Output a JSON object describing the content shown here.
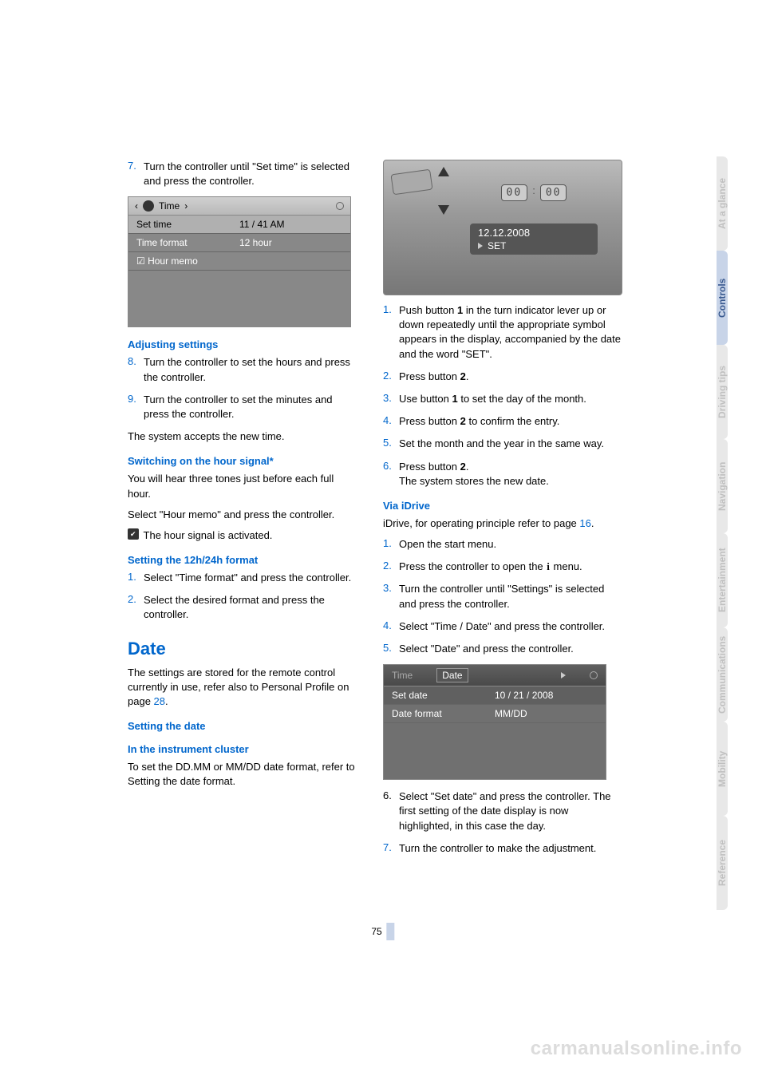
{
  "left": {
    "step7_num": "7.",
    "step7": "Turn the controller until \"Set time\" is selected and press the controller.",
    "screen1": {
      "header_label": "Time",
      "rows": [
        {
          "label": "Set time",
          "value": "11 / 41 AM",
          "hl": true
        },
        {
          "label": "Time format",
          "value": "12 hour"
        },
        {
          "label": "☑ Hour memo",
          "value": ""
        }
      ]
    },
    "h_adjust": "Adjusting settings",
    "step8_num": "8.",
    "step8": "Turn the controller to set the hours and press the controller.",
    "step9_num": "9.",
    "step9": "Turn the controller to set the minutes and press the controller.",
    "adjust_para": "The system accepts the new time.",
    "h_signal": "Switching on the hour signal*",
    "signal_para1": "You will hear three tones just before each full hour.",
    "signal_para2": "Select \"Hour memo\" and press the controller.",
    "signal_check": "The hour signal is activated.",
    "h_format": "Setting the 12h/24h format",
    "fstep1_num": "1.",
    "fstep1": "Select \"Time format\" and press the controller.",
    "fstep2_num": "2.",
    "fstep2": "Select the desired format and press the controller.",
    "h_date": "Date",
    "date_para_a": "The settings are stored for the remote control currently in use, refer also to Personal Profile on page ",
    "date_para_link": "28",
    "date_para_b": ".",
    "h_setdate": "Setting the date",
    "h_cluster": "In the instrument cluster",
    "cluster_para": "To set the DD.MM or MM/DD date format, refer to Setting the date format."
  },
  "right": {
    "cluster": {
      "digits_a": "00",
      "digits_b": "00",
      "date_text": "12.12.2008",
      "set_label": "SET"
    },
    "rstep1_num": "1.",
    "rstep1_a": "Push button ",
    "rstep1_bold": "1",
    "rstep1_b": " in the turn indicator lever up or down repeatedly until the appropriate symbol appears in the display, accompanied by the date and the word \"SET\".",
    "rstep2_num": "2.",
    "rstep2_a": "Press button ",
    "rstep2_bold": "2",
    "rstep2_b": ".",
    "rstep3_num": "3.",
    "rstep3_a": "Use button ",
    "rstep3_bold": "1",
    "rstep3_b": " to set the day of the month.",
    "rstep4_num": "4.",
    "rstep4_a": "Press button ",
    "rstep4_bold": "2",
    "rstep4_b": " to confirm the entry.",
    "rstep5_num": "5.",
    "rstep5": "Set the month and the year in the same way.",
    "rstep6_num": "6.",
    "rstep6_a": "Press button ",
    "rstep6_bold": "2",
    "rstep6_b": ".",
    "rstep6_line2": "The system stores the new date.",
    "h_idrive": "Via iDrive",
    "idrive_para_a": "iDrive, for operating principle refer to page ",
    "idrive_link": "16",
    "idrive_para_b": ".",
    "istep1_num": "1.",
    "istep1": "Open the start menu.",
    "istep2_num": "2.",
    "istep2_a": "Press the controller to open the ",
    "istep2_b": " menu.",
    "istep3_num": "3.",
    "istep3": "Turn the controller until \"Settings\" is selected and press the controller.",
    "istep4_num": "4.",
    "istep4": "Select \"Time / Date\" and press the controller.",
    "istep5_num": "5.",
    "istep5": "Select \"Date\" and press the controller.",
    "screen3": {
      "tab_time": "Time",
      "tab_date": "Date",
      "row1_label": "Set date",
      "row1_value": "10 / 21 / 2008",
      "row2_label": "Date format",
      "row2_value": "MM/DD"
    },
    "istep6_num": "6.",
    "istep6": "Select \"Set date\" and press the controller. The first setting of the date display is now highlighted, in this case the day.",
    "istep7_num": "7.",
    "istep7": "Turn the controller to make the adjustment."
  },
  "sidebar": [
    {
      "label": "At a glance",
      "active": false
    },
    {
      "label": "Controls",
      "active": true
    },
    {
      "label": "Driving tips",
      "active": false
    },
    {
      "label": "Navigation",
      "active": false
    },
    {
      "label": "Entertainment",
      "active": false
    },
    {
      "label": "Communications",
      "active": false
    },
    {
      "label": "Mobility",
      "active": false
    },
    {
      "label": "Reference",
      "active": false
    }
  ],
  "page_number": "75",
  "watermark": "carmanualsonline.info",
  "colors": {
    "accent": "#0066cc",
    "sidebar_active_bg": "#c8d4e8",
    "sidebar_active_fg": "#3a5a90",
    "sidebar_inactive_bg": "#e8e8e8",
    "sidebar_inactive_fg": "#c0c0c0"
  }
}
